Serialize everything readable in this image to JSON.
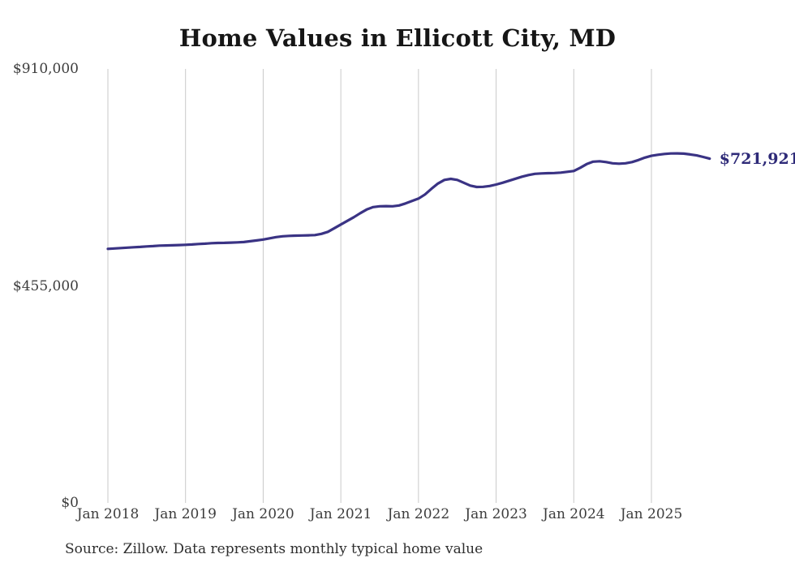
{
  "title": "Home Values in Ellicott City, MD",
  "source_note": "Source: Zillow. Data represents monthly typical home value",
  "end_label": "$721,921",
  "colors": {
    "line": "#3a3384",
    "end_label": "#2e2a78",
    "grid": "#c9c9c9",
    "title": "#161616",
    "tick_text": "#3d3d3d"
  },
  "chart_data": {
    "type": "line",
    "title": "Home Values in Ellicott City, MD",
    "xlabel": "",
    "ylabel": "",
    "ylim": [
      0,
      910000
    ],
    "y_ticks": [
      910000,
      455000,
      0
    ],
    "y_tick_labels": [
      "$910,000",
      "$455,000",
      "$0"
    ],
    "x_tick_labels": [
      "Jan 2018",
      "Jan 2019",
      "Jan 2020",
      "Jan 2021",
      "Jan 2022",
      "Jan 2023",
      "Jan 2024",
      "Jan 2025"
    ],
    "grid": "vertical-only",
    "legend": "none",
    "series": [
      {
        "name": "Typical home value (monthly)",
        "start": "2018-01",
        "frequency": "monthly",
        "end_value_label": "$721,921",
        "values": [
          532700,
          533500,
          534400,
          535200,
          536100,
          536900,
          537800,
          538600,
          539500,
          539800,
          540200,
          540700,
          541200,
          542000,
          542900,
          543700,
          544600,
          545100,
          545400,
          545800,
          546300,
          547100,
          548800,
          550500,
          552300,
          554800,
          557400,
          559100,
          559900,
          560400,
          560800,
          561100,
          561600,
          564200,
          568400,
          576100,
          583700,
          591400,
          599000,
          607600,
          615200,
          620300,
          622000,
          622400,
          622000,
          623700,
          628000,
          633100,
          638200,
          646700,
          658600,
          669700,
          677300,
          679500,
          677300,
          671400,
          665400,
          662500,
          662900,
          664600,
          667700,
          671400,
          675600,
          679900,
          684100,
          687500,
          690100,
          690900,
          691400,
          691800,
          692600,
          694300,
          696000,
          702800,
          710500,
          715600,
          716400,
          714700,
          712200,
          711300,
          712200,
          714700,
          719000,
          724100,
          727900,
          730100,
          731800,
          732700,
          733000,
          732400,
          730800,
          728600,
          725500,
          721921
        ]
      }
    ]
  }
}
